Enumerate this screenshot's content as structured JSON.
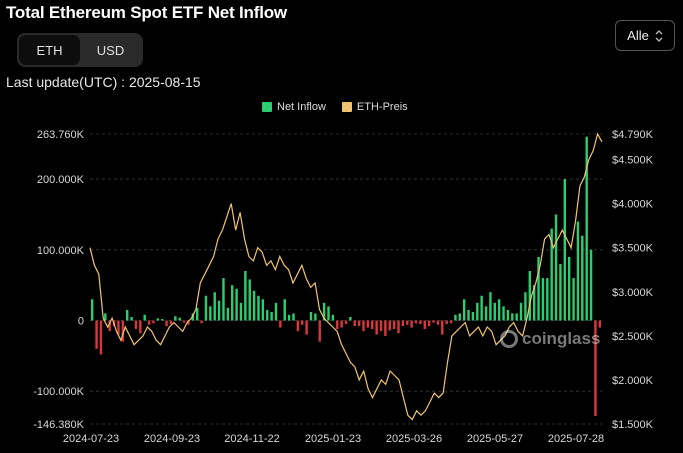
{
  "header": {
    "title": "Total Ethereum Spot ETF Net Inflow",
    "unit_options": [
      "ETH",
      "USD"
    ],
    "range_value": "Alle",
    "last_update": "Last update(UTC) : 2025-08-15",
    "watermark": "coinglass"
  },
  "colors": {
    "inflow_positive": "#2ecc71",
    "inflow_negative": "#d9363e",
    "price_line": "#f2c46d",
    "grid": "#3a3a3a",
    "background": "#000000"
  },
  "chart_data": {
    "type": "bar",
    "title": "Total Ethereum Spot ETF Net Inflow",
    "legend_position": "top-center",
    "series": [
      {
        "name": "Net Inflow",
        "kind": "bar",
        "axis": "left",
        "unit": "ETH",
        "x_range": [
          "2024-07-23",
          "2025-08-15"
        ],
        "values": [
          30000,
          -40000,
          -48000,
          10000,
          -15000,
          -8000,
          -20000,
          -30000,
          15000,
          5000,
          -12000,
          -18000,
          8000,
          -6000,
          -4000,
          3000,
          2000,
          -8000,
          -5000,
          6000,
          4000,
          -3000,
          -6000,
          10000,
          18000,
          -4000,
          35000,
          20000,
          40000,
          28000,
          60000,
          18000,
          50000,
          45000,
          25000,
          70000,
          58000,
          42000,
          35000,
          30000,
          15000,
          12000,
          25000,
          -10000,
          30000,
          8000,
          10000,
          -15000,
          -6000,
          -20000,
          12000,
          10000,
          -30000,
          25000,
          20000,
          8000,
          -12000,
          -10000,
          -5000,
          5000,
          -8000,
          -8000,
          -15000,
          -10000,
          -12000,
          -20000,
          -15000,
          -22000,
          -14000,
          -12000,
          -18000,
          -8000,
          -6000,
          -10000,
          -4000,
          -5000,
          -12000,
          -8000,
          -3000,
          -6000,
          -20000,
          -5000,
          -4000,
          8000,
          10000,
          30000,
          15000,
          12000,
          25000,
          35000,
          20000,
          40000,
          25000,
          30000,
          20000,
          15000,
          10000,
          10000,
          25000,
          40000,
          70000,
          50000,
          90000,
          60000,
          60000,
          130000,
          150000,
          80000,
          200000,
          90000,
          60000,
          140000,
          120000,
          260000,
          100000,
          -135000,
          -10000
        ],
        "ylim": [
          -146380,
          263760
        ],
        "yticks": [
          "263.760K",
          "200.000K",
          "100.000K",
          "0",
          "-100.000K",
          "-146.380K"
        ]
      },
      {
        "name": "ETH-Preis",
        "kind": "line",
        "axis": "right",
        "unit": "USD",
        "values": [
          3500,
          3300,
          3200,
          2700,
          2600,
          2700,
          2550,
          2450,
          2600,
          2500,
          2400,
          2450,
          2500,
          2600,
          2550,
          2450,
          2400,
          2500,
          2600,
          2650,
          2600,
          2550,
          2650,
          2700,
          2800,
          3100,
          3200,
          3300,
          3400,
          3600,
          3700,
          3850,
          4000,
          3700,
          3900,
          3600,
          3400,
          3350,
          3500,
          3450,
          3300,
          3350,
          3250,
          3400,
          3300,
          3250,
          3100,
          3200,
          3300,
          3150,
          3050,
          3100,
          2800,
          2700,
          2650,
          2600,
          2550,
          2400,
          2300,
          2200,
          2150,
          2000,
          2100,
          1900,
          1800,
          1900,
          2000,
          1950,
          2100,
          2050,
          2000,
          1800,
          1600,
          1550,
          1650,
          1600,
          1650,
          1750,
          1850,
          1800,
          1850,
          2200,
          2500,
          2550,
          2600,
          2650,
          2500,
          2550,
          2600,
          2500,
          2600,
          2550,
          2400,
          2450,
          2500,
          2600,
          2650,
          2550,
          2500,
          2700,
          2950,
          3100,
          3300,
          3600,
          3650,
          3500,
          3600,
          3700,
          3600,
          3500,
          3800,
          4200,
          4300,
          4500,
          4600,
          4790,
          4700
        ],
        "ylim": [
          1500,
          4790
        ],
        "yticks": [
          "$4.790K",
          "$4.500K",
          "$4.000K",
          "$3.500K",
          "$3.000K",
          "$2.500K",
          "$2.000K",
          "$1.500K"
        ]
      }
    ],
    "x_tick_labels": [
      "2024-07-23",
      "2024-09-23",
      "2024-11-22",
      "2025-01-23",
      "2025-03-26",
      "2025-05-27",
      "2025-07-28"
    ],
    "grid": true
  }
}
